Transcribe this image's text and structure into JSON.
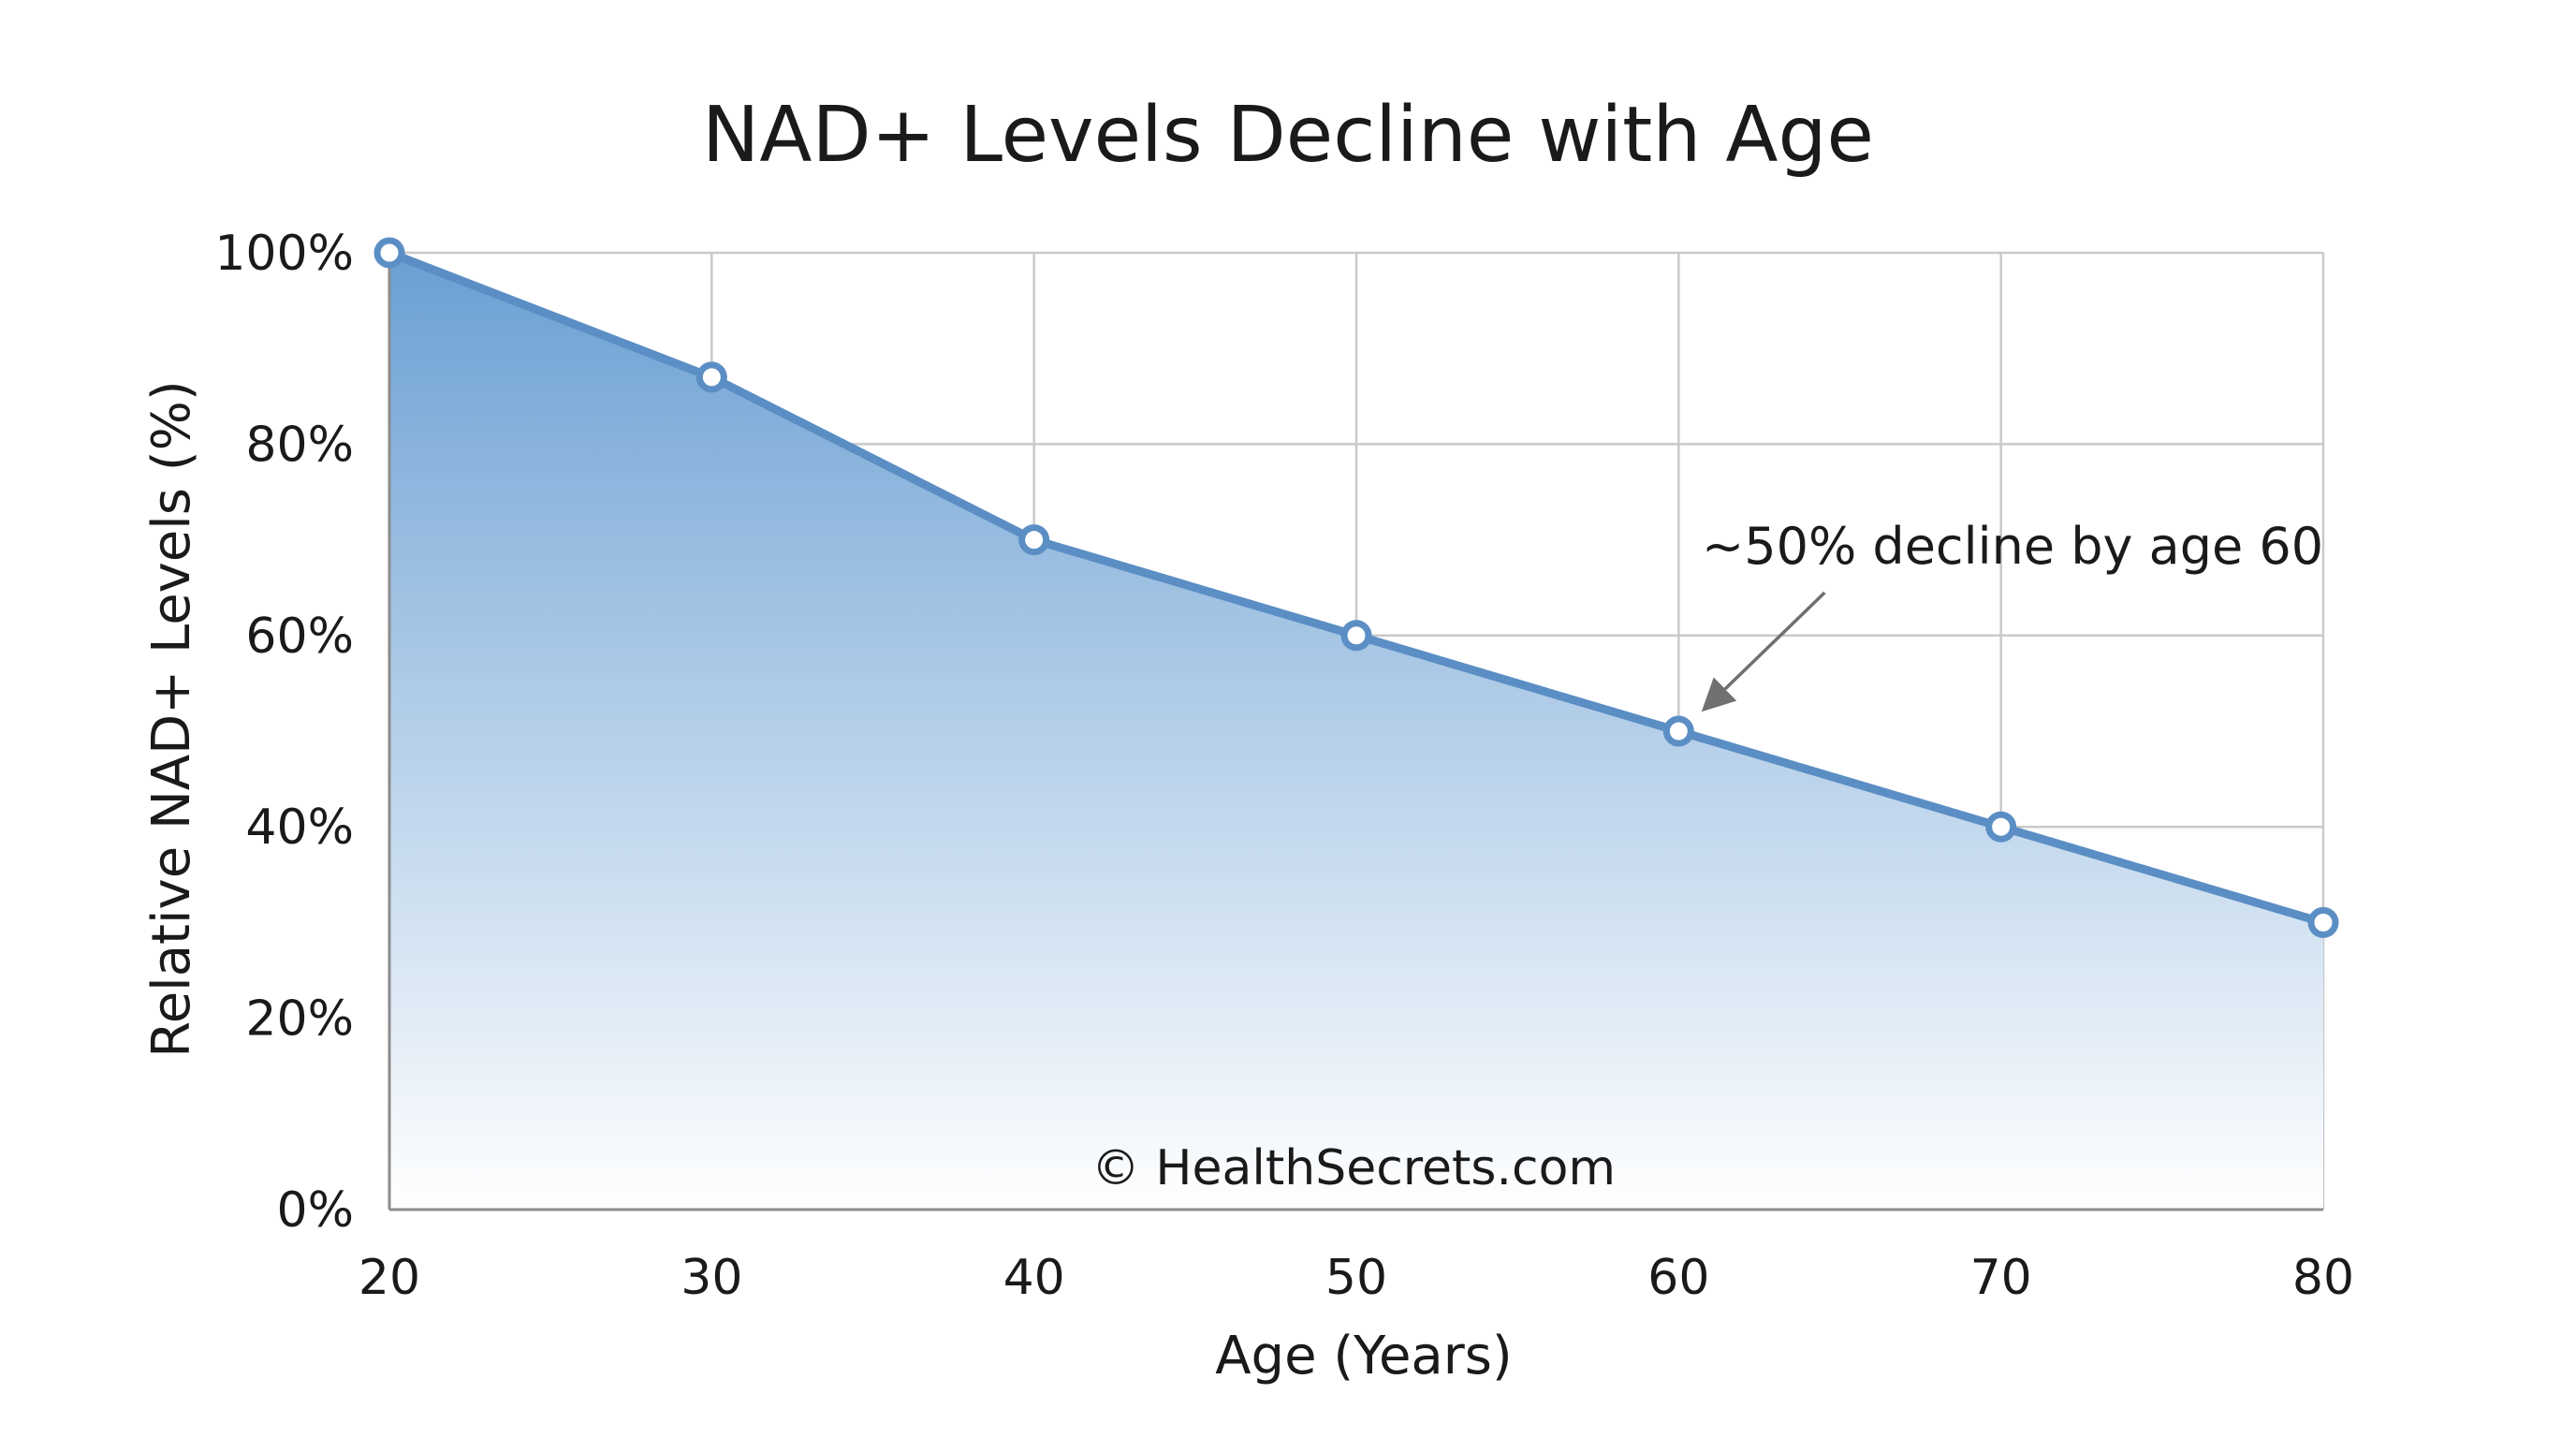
{
  "chart_data": {
    "type": "area",
    "title": "NAD+ Levels Decline with Age",
    "xlabel": "Age (Years)",
    "ylabel": "Relative NAD+ Levels (%)",
    "x": [
      20,
      30,
      40,
      50,
      60,
      70,
      80
    ],
    "series": [
      {
        "values": [
          100,
          87,
          70,
          60,
          50,
          40,
          30
        ]
      }
    ],
    "xlim": [
      20,
      80
    ],
    "ylim": [
      0,
      100
    ],
    "xticks": [
      "20",
      "30",
      "40",
      "50",
      "60",
      "70",
      "80"
    ],
    "yticks": [
      "0%",
      "20%",
      "40%",
      "60%",
      "80%",
      "100%"
    ],
    "grid": true,
    "legend": "none",
    "annotation": {
      "text": "~50% decline by age 60",
      "target_x": 60,
      "target_y": 50
    },
    "watermark": "© HealthSecrets.com",
    "colors": {
      "line": "#5b8ec4",
      "fill_top": "#6a9fd3",
      "fill_bottom": "#ffffff",
      "arrow": "#707070"
    }
  }
}
